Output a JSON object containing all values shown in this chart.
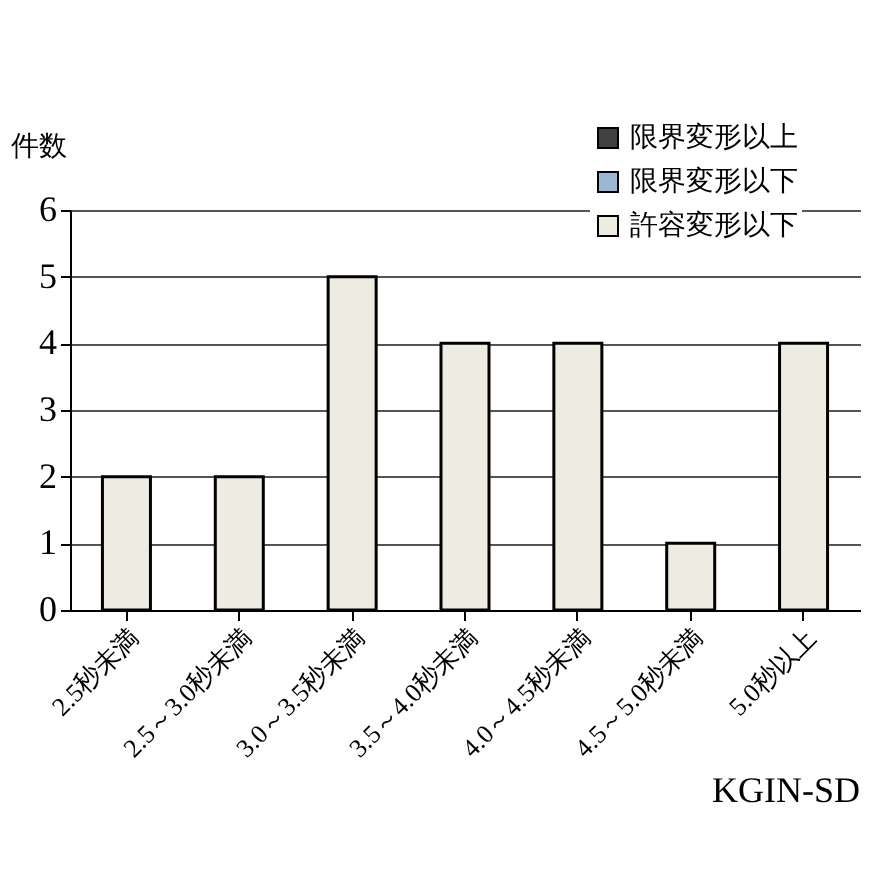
{
  "chart_data": {
    "type": "bar",
    "stacked": true,
    "ylabel": "件数",
    "categories": [
      "2.5秒未満",
      "2.5～3.0秒未満",
      "3.0～3.5秒未満",
      "3.5～4.0秒未満",
      "4.0～4.5秒未満",
      "4.5～5.0秒未満",
      "5.0秒以上"
    ],
    "series": [
      {
        "name": "許容変形以下",
        "color": "#eeece1",
        "values": [
          2,
          2,
          5,
          4,
          4,
          1,
          4
        ]
      },
      {
        "name": "限界変形以下",
        "color": "#9bb7d4",
        "values": [
          0,
          0,
          0,
          0,
          0,
          0,
          0
        ]
      },
      {
        "name": "限界変形以上",
        "color": "#404040",
        "values": [
          0,
          0,
          0,
          0,
          0,
          0,
          0
        ]
      }
    ],
    "ylim": [
      0,
      6
    ],
    "yticks": [
      0,
      1,
      2,
      3,
      4,
      5,
      6
    ],
    "grid": "y",
    "legend": "top right",
    "annotations": [
      "KGIN-SD"
    ]
  }
}
